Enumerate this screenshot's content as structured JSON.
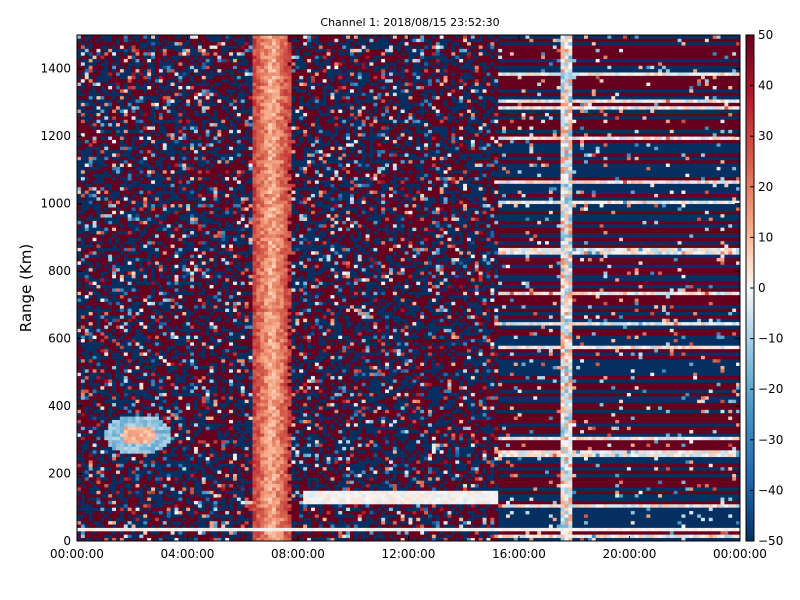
{
  "chart_data": {
    "type": "heatmap",
    "title": "Channel 1: 2018/08/15 23:52:30",
    "xlabel": "",
    "ylabel": "Range (Km)",
    "x_tick_labels": [
      "00:00:00",
      "04:00:00",
      "08:00:00",
      "12:00:00",
      "16:00:00",
      "20:00:00",
      "00:00:00"
    ],
    "x_range_hours": [
      0,
      24
    ],
    "x_tick_hours": [
      0,
      4,
      8,
      12,
      16,
      20,
      24
    ],
    "y_ticks": [
      0,
      200,
      400,
      600,
      800,
      1000,
      1200,
      1400
    ],
    "ylim": [
      0,
      1500
    ],
    "colorbar": {
      "ticks": [
        50,
        40,
        30,
        20,
        10,
        0,
        -10,
        -20,
        -30,
        -40,
        -50
      ],
      "range": [
        -50,
        50
      ],
      "colormap": "red-white-blue (diverging)",
      "color_high": "#67001f",
      "color_mid": "#f7f7f7",
      "color_low": "#053061"
    },
    "features": [
      {
        "description": "Vertical band of positive values (orange/white)",
        "time_hours_start": 6.3,
        "time_hours_end": 7.8,
        "value_range": [
          10,
          30
        ],
        "range_km": [
          0,
          1500
        ]
      },
      {
        "description": "Blob of near-zero / positive values",
        "time_hours_center": 2.2,
        "range_km": [
          270,
          360
        ]
      },
      {
        "description": "Horizontal band of near-zero values",
        "time_hours_start": 8.2,
        "time_hours_end": 15.2,
        "range_km": [
          115,
          145
        ]
      },
      {
        "description": "Thin near-zero line near the bottom",
        "time_hours_start": 0,
        "time_hours_end": 24,
        "range_km": [
          30,
          40
        ]
      },
      {
        "description": "Vertical light strip",
        "time_hours_start": 17.6,
        "time_hours_end": 17.8,
        "range_km": [
          0,
          1500
        ]
      },
      {
        "description": "Horizontally banded (striped) region",
        "time_hours_start": 15.3,
        "time_hours_end": 24,
        "range_km": [
          0,
          1500
        ]
      }
    ]
  }
}
